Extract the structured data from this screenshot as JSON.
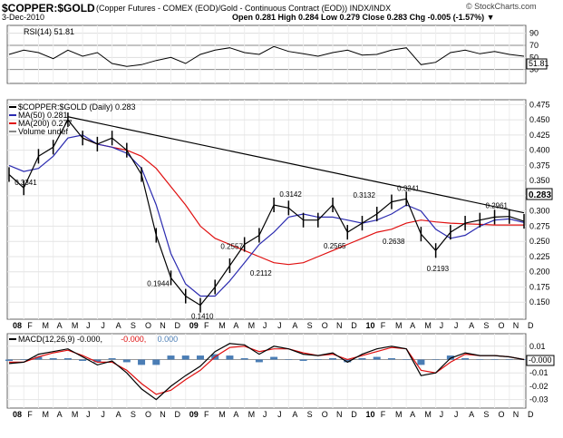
{
  "header": {
    "symbol": "$COPPER:$GOLD",
    "description": "(Copper Futures - COMEX (EOD)/Gold - Continuous Contract (EOD)) INDX/INDX",
    "date": "3-Dec-2010",
    "ohlc": "Open 0.281 High 0.284 Low 0.279 Close 0.283 Chg -0.005 (-1.57%) ▼",
    "credit": "© StockCharts.com"
  },
  "colors": {
    "price": "#000000",
    "ma50": "#2b2bb0",
    "ma200": "#e01010",
    "macd_hist": "#4a7db5",
    "trendline": "#000000"
  },
  "chart_data": [
    {
      "type": "line",
      "name": "rsi_panel",
      "legend": "RSI(14) 51.81",
      "current_label": "51.81",
      "ylim": [
        10,
        100
      ],
      "y_ticks": [
        90,
        70,
        50,
        30
      ],
      "reference_lines": [
        70,
        30
      ],
      "x": [
        "2008-01",
        "2008-02",
        "2008-03",
        "2008-04",
        "2008-05",
        "2008-06",
        "2008-07",
        "2008-08",
        "2008-09",
        "2008-10",
        "2008-11",
        "2008-12",
        "2009-01",
        "2009-02",
        "2009-03",
        "2009-04",
        "2009-05",
        "2009-06",
        "2009-07",
        "2009-08",
        "2009-09",
        "2009-10",
        "2009-11",
        "2009-12",
        "2010-01",
        "2010-02",
        "2010-03",
        "2010-04",
        "2010-05",
        "2010-06",
        "2010-07",
        "2010-08",
        "2010-09",
        "2010-10",
        "2010-11",
        "2010-12"
      ],
      "values": [
        55,
        62,
        58,
        48,
        62,
        52,
        58,
        40,
        35,
        38,
        45,
        50,
        40,
        55,
        62,
        66,
        58,
        55,
        68,
        60,
        56,
        52,
        58,
        62,
        54,
        55,
        62,
        66,
        38,
        42,
        58,
        62,
        56,
        60,
        55,
        52
      ]
    },
    {
      "type": "line",
      "name": "price_panel",
      "legend": [
        "$COPPER:$GOLD (Daily) 0.283",
        "MA(50) 0.281",
        "MA(200) 0.277",
        "Volume undef"
      ],
      "last_value_label": "0.283",
      "ylim": [
        0.125,
        0.48
      ],
      "y_ticks": [
        0.475,
        0.45,
        0.425,
        0.4,
        0.375,
        0.35,
        0.325,
        0.3,
        0.275,
        0.25,
        0.225,
        0.2,
        0.175,
        0.15
      ],
      "y_tick_labels": [
        "0.475",
        "0.450",
        "0.425",
        "0.400",
        "0.375",
        "0.350",
        "0.325",
        "0.300",
        "0.275",
        "0.250",
        "0.225",
        "0.200",
        "0.175",
        "0.150"
      ],
      "x_tick_labels": [
        "08",
        "F",
        "M",
        "A",
        "M",
        "J",
        "J",
        "A",
        "S",
        "O",
        "N",
        "D",
        "09",
        "F",
        "M",
        "A",
        "M",
        "J",
        "J",
        "A",
        "S",
        "O",
        "N",
        "D",
        "10",
        "F",
        "M",
        "A",
        "M",
        "J",
        "J",
        "A",
        "S",
        "O",
        "N",
        "D"
      ],
      "series": [
        {
          "name": "$COPPER:$GOLD",
          "values": [
            0.36,
            0.338,
            0.39,
            0.405,
            0.45,
            0.42,
            0.41,
            0.42,
            0.4,
            0.36,
            0.26,
            0.19,
            0.16,
            0.145,
            0.175,
            0.21,
            0.245,
            0.26,
            0.31,
            0.305,
            0.285,
            0.285,
            0.31,
            0.265,
            0.28,
            0.295,
            0.315,
            0.32,
            0.262,
            0.235,
            0.265,
            0.28,
            0.285,
            0.29,
            0.291,
            0.283
          ]
        },
        {
          "name": "MA(50)",
          "values": [
            0.375,
            0.365,
            0.37,
            0.39,
            0.42,
            0.425,
            0.41,
            0.405,
            0.395,
            0.37,
            0.31,
            0.23,
            0.18,
            0.16,
            0.16,
            0.185,
            0.215,
            0.245,
            0.265,
            0.29,
            0.295,
            0.29,
            0.29,
            0.285,
            0.28,
            0.285,
            0.295,
            0.31,
            0.3,
            0.27,
            0.255,
            0.26,
            0.275,
            0.285,
            0.287,
            0.281
          ]
        },
        {
          "name": "MA(200)",
          "values": [
            null,
            null,
            null,
            null,
            null,
            0.42,
            0.41,
            0.405,
            0.4,
            0.39,
            0.37,
            0.34,
            0.31,
            0.275,
            0.255,
            0.245,
            0.235,
            0.225,
            0.215,
            0.212,
            0.215,
            0.225,
            0.235,
            0.245,
            0.255,
            0.265,
            0.27,
            0.28,
            0.285,
            0.282,
            0.28,
            0.279,
            0.278,
            0.277,
            0.277,
            0.277
          ]
        }
      ],
      "annotations": [
        {
          "label": "0.3341",
          "x": "2008-02",
          "y": 0.3341
        },
        {
          "label": "0.1944",
          "x": "2008-11",
          "y": 0.1944
        },
        {
          "label": "0.1410",
          "x": "2009-02",
          "y": 0.141
        },
        {
          "label": "0.2557",
          "x": "2009-04",
          "y": 0.2557
        },
        {
          "label": "0.2112",
          "x": "2009-06",
          "y": 0.2112
        },
        {
          "label": "0.3142",
          "x": "2009-08",
          "y": 0.3142
        },
        {
          "label": "0.2565",
          "x": "2009-11",
          "y": 0.2565
        },
        {
          "label": "0.3132",
          "x": "2010-01",
          "y": 0.3132
        },
        {
          "label": "0.2638",
          "x": "2010-03",
          "y": 0.2638
        },
        {
          "label": "0.3241",
          "x": "2010-04",
          "y": 0.3241
        },
        {
          "label": "0.2193",
          "x": "2010-06",
          "y": 0.2193
        },
        {
          "label": "0.2961",
          "x": "2010-10",
          "y": 0.2961
        }
      ],
      "trendline": {
        "from": {
          "x": "2008-05",
          "y": 0.455
        },
        "to": {
          "x": "2010-12",
          "y": 0.297
        }
      }
    },
    {
      "type": "line",
      "name": "macd_panel",
      "legend": [
        "MACD(12,26,9) -0.000,",
        "-0.000,",
        "0.000"
      ],
      "current_label": "-0.000",
      "ylim": [
        -0.035,
        0.018
      ],
      "y_ticks": [
        0.01,
        0.0,
        -0.01,
        -0.02,
        -0.03
      ],
      "y_tick_labels": [
        "0.01",
        "0.00",
        "-0.01",
        "-0.02",
        "-0.03"
      ],
      "series": [
        {
          "name": "MACD",
          "values": [
            -0.003,
            -0.002,
            0.004,
            0.006,
            0.008,
            0.002,
            -0.004,
            -0.001,
            -0.01,
            -0.022,
            -0.03,
            -0.02,
            -0.012,
            -0.005,
            0.006,
            0.012,
            0.011,
            0.004,
            0.01,
            0.008,
            0.004,
            0.003,
            0.005,
            -0.002,
            0.004,
            0.008,
            0.01,
            0.008,
            -0.012,
            -0.01,
            0.001,
            0.005,
            0.003,
            0.003,
            0.002,
            0.0
          ]
        },
        {
          "name": "Signal",
          "values": [
            -0.002,
            -0.002,
            0.002,
            0.005,
            0.007,
            0.003,
            -0.002,
            -0.002,
            -0.008,
            -0.018,
            -0.026,
            -0.023,
            -0.015,
            -0.008,
            0.002,
            0.009,
            0.01,
            0.006,
            0.008,
            0.008,
            0.005,
            0.003,
            0.004,
            0.0,
            0.003,
            0.006,
            0.009,
            0.008,
            -0.008,
            -0.01,
            -0.002,
            0.004,
            0.003,
            0.003,
            0.002,
            0.0
          ]
        },
        {
          "name": "Histogram",
          "values": [
            -0.001,
            0.0,
            0.002,
            0.001,
            0.001,
            -0.001,
            -0.002,
            0.001,
            -0.002,
            -0.004,
            -0.004,
            0.003,
            0.003,
            0.003,
            0.004,
            0.003,
            0.001,
            -0.002,
            0.002,
            0.0,
            -0.001,
            0.0,
            0.001,
            -0.002,
            0.001,
            0.002,
            0.001,
            0.0,
            -0.004,
            0.0,
            0.003,
            0.001,
            0.0,
            0.0,
            0.0,
            0.0
          ]
        }
      ]
    }
  ]
}
